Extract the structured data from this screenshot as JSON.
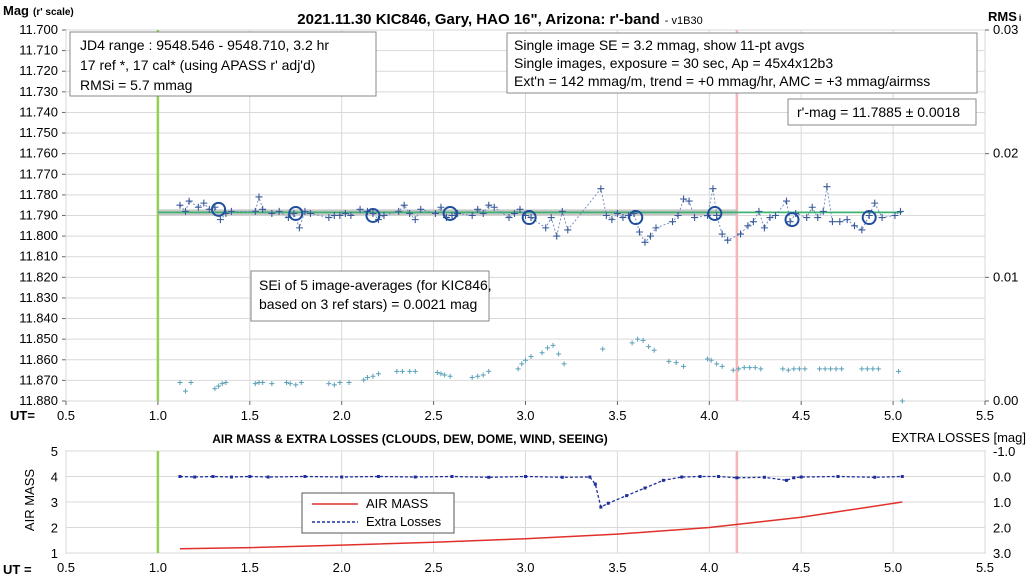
{
  "chart_data": [
    {
      "type": "scatter",
      "title": "2021.11.30 KIC846, Gary, HAO 16\", Arizona: r'-band",
      "version": "- v1B30",
      "ylabel": "Mag",
      "ylabel_sub": "(r' scale)",
      "y2label": "RMS",
      "y2label_sub": "i",
      "xlabel": "UT=",
      "xlim": [
        0.5,
        5.5
      ],
      "ylim": [
        11.7,
        11.88
      ],
      "y_inverted": true,
      "y2lim": [
        0.0,
        0.03
      ],
      "x_ticks": [
        "0.5",
        "1.0",
        "1.5",
        "2.0",
        "2.5",
        "3.0",
        "3.5",
        "4.0",
        "4.5",
        "5.0",
        "5.5"
      ],
      "y_ticks": [
        "11.700",
        "11.710",
        "11.720",
        "11.730",
        "11.740",
        "11.750",
        "11.760",
        "11.770",
        "11.780",
        "11.790",
        "11.800",
        "11.810",
        "11.820",
        "11.830",
        "11.840",
        "11.850",
        "11.860",
        "11.870",
        "11.880"
      ],
      "y2_ticks": [
        "0.03",
        "0.02",
        "0.01",
        "0.00"
      ],
      "grid": true,
      "info_box_1": [
        "JD4 range : 9548.546 - 9548.710,  3.2  hr",
        "17 ref *, 17 cal* (using APASS r' adj'd)",
        "RMSi = 5.7 mmag"
      ],
      "info_box_2": [
        "Single image SE = 3.2 mmag, show  11-pt avgs",
        "Single images, exposure = 30 sec, Ap = 45x4x12b3",
        "Ext'n = 142 mmag/m, trend = +0  mmag/hr, AMC = +3 mmag/airmss"
      ],
      "result_box": "r'-mag = 11.7885 ± 0.0018",
      "sei_box": [
        "SEi of 5 image-averages (for KIC846,",
        "based on 3 ref stars) = 0.0021 mag"
      ],
      "vertical_lines": [
        {
          "x": 1.0,
          "color": "#92d050"
        },
        {
          "x": 4.15,
          "color": "#f4b6b6"
        }
      ],
      "trend_line": {
        "x": [
          1.0,
          5.05
        ],
        "y": [
          11.7885,
          11.7885
        ],
        "color": "#3cb371"
      },
      "gray_segment": {
        "x": [
          1.0,
          4.15
        ],
        "y": [
          11.7885,
          11.7885
        ]
      },
      "series": [
        {
          "name": "Single images",
          "color": "#3a5a9a",
          "x": [
            1.12,
            1.15,
            1.17,
            1.22,
            1.25,
            1.28,
            1.31,
            1.34,
            1.37,
            1.4,
            1.53,
            1.55,
            1.57,
            1.62,
            1.66,
            1.71,
            1.74,
            1.77,
            1.8,
            1.83,
            1.93,
            1.96,
            1.99,
            2.02,
            2.05,
            2.1,
            2.14,
            2.17,
            2.2,
            2.23,
            2.31,
            2.34,
            2.37,
            2.4,
            2.43,
            2.51,
            2.54,
            2.57,
            2.6,
            2.63,
            2.71,
            2.74,
            2.77,
            2.8,
            2.83,
            2.91,
            2.94,
            2.97,
            3.0,
            3.03,
            3.11,
            3.14,
            3.17,
            3.2,
            3.23,
            3.41,
            3.44,
            3.47,
            3.5,
            3.53,
            3.56,
            3.59,
            3.62,
            3.65,
            3.68,
            3.71,
            3.8,
            3.83,
            3.86,
            3.89,
            3.92,
            3.99,
            4.02,
            4.04,
            4.07,
            4.1,
            4.17,
            4.21,
            4.24,
            4.27,
            4.3,
            4.33,
            4.36,
            4.42,
            4.44,
            4.47,
            4.53,
            4.56,
            4.59,
            4.62,
            4.64,
            4.67,
            4.71,
            4.75,
            4.79,
            4.83,
            4.87,
            4.9,
            4.94,
            5.01,
            5.04
          ],
          "y": [
            11.785,
            11.788,
            11.783,
            11.786,
            11.784,
            11.787,
            11.786,
            11.792,
            11.789,
            11.788,
            11.788,
            11.781,
            11.787,
            11.789,
            11.788,
            11.791,
            11.789,
            11.796,
            11.788,
            11.789,
            11.791,
            11.79,
            11.79,
            11.789,
            11.79,
            11.787,
            11.788,
            11.789,
            11.792,
            11.79,
            11.788,
            11.785,
            11.789,
            11.792,
            11.787,
            11.789,
            11.786,
            11.791,
            11.79,
            11.789,
            11.79,
            11.787,
            11.789,
            11.785,
            11.786,
            11.791,
            11.789,
            11.787,
            11.79,
            11.791,
            11.796,
            11.791,
            11.8,
            11.788,
            11.797,
            11.777,
            11.79,
            11.792,
            11.789,
            11.791,
            11.79,
            11.789,
            11.798,
            11.803,
            11.8,
            11.796,
            11.793,
            11.79,
            11.782,
            11.783,
            11.791,
            11.79,
            11.777,
            11.79,
            11.799,
            11.802,
            11.799,
            11.795,
            11.793,
            11.788,
            11.796,
            11.791,
            11.79,
            11.783,
            11.793,
            11.789,
            11.791,
            11.786,
            11.791,
            11.788,
            11.776,
            11.793,
            11.793,
            11.792,
            11.795,
            11.797,
            11.79,
            11.784,
            11.791,
            11.79,
            11.788
          ]
        },
        {
          "name": "11-pt averages",
          "color": "#1f4e9c",
          "x": [
            1.33,
            1.75,
            2.17,
            2.59,
            3.02,
            3.6,
            4.03,
            4.45,
            4.87
          ],
          "y": [
            11.787,
            11.789,
            11.79,
            11.789,
            11.791,
            11.791,
            11.789,
            11.792,
            11.791
          ]
        },
        {
          "name": "RMS",
          "color": "#5aa0b8",
          "axis": "y2",
          "x": [
            1.12,
            1.15,
            1.18,
            1.31,
            1.33,
            1.35,
            1.37,
            1.53,
            1.55,
            1.57,
            1.62,
            1.7,
            1.72,
            1.75,
            1.78,
            1.93,
            1.96,
            1.99,
            2.04,
            2.12,
            2.14,
            2.17,
            2.2,
            2.3,
            2.33,
            2.37,
            2.4,
            2.52,
            2.54,
            2.56,
            2.59,
            2.71,
            2.74,
            2.77,
            2.8,
            2.96,
            2.98,
            3.0,
            3.03,
            3.09,
            3.12,
            3.15,
            3.18,
            3.21,
            3.42,
            3.58,
            3.61,
            3.64,
            3.67,
            3.7,
            3.78,
            3.82,
            3.86,
            3.99,
            4.01,
            4.04,
            4.07,
            4.13,
            4.16,
            4.19,
            4.22,
            4.25,
            4.28,
            4.4,
            4.43,
            4.46,
            4.49,
            4.52,
            4.6,
            4.63,
            4.66,
            4.69,
            4.72,
            4.83,
            4.86,
            4.89,
            4.92,
            5.03,
            5.05
          ],
          "y": [
            0.0015,
            0.0008,
            0.0015,
            0.001,
            0.0012,
            0.0014,
            0.0015,
            0.0014,
            0.0015,
            0.0015,
            0.0014,
            0.0015,
            0.0014,
            0.0013,
            0.0015,
            0.0014,
            0.0013,
            0.0015,
            0.0015,
            0.0017,
            0.0019,
            0.002,
            0.0022,
            0.0024,
            0.0024,
            0.0024,
            0.0024,
            0.0023,
            0.0022,
            0.0021,
            0.002,
            0.0019,
            0.002,
            0.0021,
            0.0024,
            0.0026,
            0.003,
            0.0033,
            0.0036,
            0.0039,
            0.0043,
            0.0045,
            0.0038,
            0.003,
            0.0042,
            0.0047,
            0.005,
            0.0049,
            0.0044,
            0.0041,
            0.0032,
            0.0031,
            0.0028,
            0.0034,
            0.0033,
            0.003,
            0.0028,
            0.0025,
            0.0026,
            0.0027,
            0.0027,
            0.0027,
            0.0026,
            0.0026,
            0.0025,
            0.0026,
            0.0026,
            0.0026,
            0.0026,
            0.0026,
            0.0026,
            0.0026,
            0.0026,
            0.0026,
            0.0026,
            0.0026,
            0.0026,
            0.0024,
            0.0
          ]
        }
      ]
    },
    {
      "type": "line",
      "title": "AIR MASS & EXTRA LOSSES (CLOUDS, DEW, DOME, WIND, SEEING)",
      "ylabel": "AIR MASS",
      "y2label": "EXTRA LOSSES [mag]",
      "xlabel": "UT =",
      "xlim": [
        0.5,
        5.5
      ],
      "ylim": [
        1,
        5
      ],
      "y2lim": [
        3.0,
        -1.0
      ],
      "x_ticks": [
        "0.5",
        "1.0",
        "1.5",
        "2.0",
        "2.5",
        "3.0",
        "3.5",
        "4.0",
        "4.5",
        "5.0",
        "5.5"
      ],
      "y_ticks": [
        "1",
        "2",
        "3",
        "4",
        "5"
      ],
      "y2_ticks": [
        "3.0",
        "2.0",
        "1.0",
        "0.0",
        "-1.0"
      ],
      "grid": true,
      "vertical_lines": [
        {
          "x": 1.0,
          "color": "#92d050"
        },
        {
          "x": 4.15,
          "color": "#f4b6b6"
        }
      ],
      "series": [
        {
          "name": "AIR MASS",
          "color": "#e0302a",
          "x": [
            1.12,
            1.5,
            2.0,
            2.5,
            3.0,
            3.5,
            4.0,
            4.5,
            5.05
          ],
          "y": [
            1.17,
            1.21,
            1.31,
            1.42,
            1.56,
            1.74,
            2.0,
            2.4,
            3.0
          ]
        },
        {
          "name": "Extra Losses",
          "color": "#1f2e9a",
          "axis": "y2",
          "x": [
            1.12,
            1.2,
            1.3,
            1.4,
            1.5,
            1.6,
            1.8,
            2.0,
            2.2,
            2.4,
            2.6,
            2.8,
            3.0,
            3.2,
            3.35,
            3.38,
            3.41,
            3.45,
            3.55,
            3.65,
            3.75,
            3.85,
            3.95,
            4.05,
            4.15,
            4.3,
            4.42,
            4.46,
            4.5,
            4.7,
            4.9,
            5.05
          ],
          "y": [
            0.0,
            0.02,
            0.0,
            0.02,
            0.0,
            0.02,
            0.0,
            0.02,
            0.0,
            0.02,
            0.0,
            0.03,
            0.0,
            0.03,
            0.02,
            0.3,
            1.2,
            1.05,
            0.75,
            0.45,
            0.15,
            0.02,
            0.0,
            0.0,
            0.05,
            0.03,
            0.15,
            0.05,
            0.02,
            0.0,
            0.03,
            0.0
          ]
        }
      ],
      "legend": [
        "AIR MASS",
        "Extra Losses"
      ],
      "legend_position": "lower-left-center"
    }
  ]
}
